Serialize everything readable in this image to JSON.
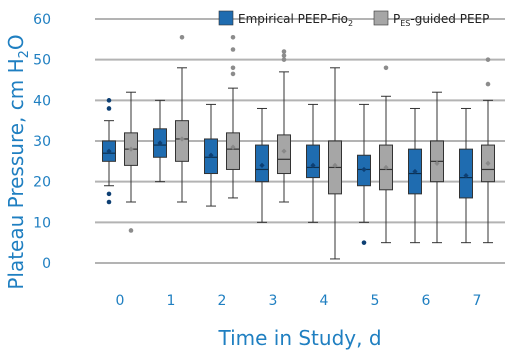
{
  "chart_data": {
    "type": "box",
    "categories": [
      "0",
      "1",
      "2",
      "3",
      "4",
      "5",
      "6",
      "7"
    ],
    "xlabel": "Time in Study, d",
    "ylabel": {
      "main": "Plateau Pressure, cm H",
      "sub": "2",
      "tail": "O"
    },
    "ylim": [
      0,
      60
    ],
    "yticks": [
      0,
      10,
      20,
      30,
      40,
      50,
      60
    ],
    "grid": true,
    "legend_position": "top-right",
    "series": [
      {
        "name": {
          "main": "Empirical PEEP-Fio",
          "sub": "2",
          "tail": ""
        },
        "color": "#1f6cb0",
        "boxes": [
          {
            "whisker_low": 19,
            "q1": 25,
            "median": 27,
            "q3": 30,
            "whisker_high": 35,
            "mean": 27.5,
            "outliers": [
              15,
              17,
              38,
              40
            ]
          },
          {
            "whisker_low": 20,
            "q1": 26,
            "median": 29,
            "q3": 33,
            "whisker_high": 40,
            "mean": 29.5,
            "outliers": []
          },
          {
            "whisker_low": 14,
            "q1": 22,
            "median": 26,
            "q3": 30.5,
            "whisker_high": 39,
            "mean": 26.5,
            "outliers": []
          },
          {
            "whisker_low": 10,
            "q1": 20,
            "median": 23,
            "q3": 29,
            "whisker_high": 38,
            "mean": 24,
            "outliers": []
          },
          {
            "whisker_low": 10,
            "q1": 21,
            "median": 23.5,
            "q3": 29,
            "whisker_high": 39,
            "mean": 24,
            "outliers": []
          },
          {
            "whisker_low": 10,
            "q1": 19,
            "median": 23,
            "q3": 26.5,
            "whisker_high": 39,
            "mean": 23,
            "outliers": [
              5
            ]
          },
          {
            "whisker_low": 5,
            "q1": 17,
            "median": 22,
            "q3": 28,
            "whisker_high": 38,
            "mean": 22.5,
            "outliers": []
          },
          {
            "whisker_low": 5,
            "q1": 16,
            "median": 21,
            "q3": 28,
            "whisker_high": 38,
            "mean": 21.5,
            "outliers": []
          }
        ]
      },
      {
        "name": {
          "main": "P",
          "sub": "ES",
          "tail": "-guided PEEP"
        },
        "color": "#a6a6a6",
        "boxes": [
          {
            "whisker_low": 15,
            "q1": 24,
            "median": 28,
            "q3": 32,
            "whisker_high": 42,
            "mean": 28,
            "outliers": [
              8
            ]
          },
          {
            "whisker_low": 15,
            "q1": 25,
            "median": 30.5,
            "q3": 35,
            "whisker_high": 48,
            "mean": 30.5,
            "outliers": [
              55.5
            ]
          },
          {
            "whisker_low": 16,
            "q1": 23,
            "median": 28,
            "q3": 32,
            "whisker_high": 43,
            "mean": 28.5,
            "outliers": [
              46.5,
              48,
              52.5,
              55.5
            ]
          },
          {
            "whisker_low": 15,
            "q1": 22,
            "median": 25.5,
            "q3": 31.5,
            "whisker_high": 47,
            "mean": 27.5,
            "outliers": [
              50,
              51,
              52
            ]
          },
          {
            "whisker_low": 1,
            "q1": 17,
            "median": 23.5,
            "q3": 30,
            "whisker_high": 48,
            "mean": 24,
            "outliers": []
          },
          {
            "whisker_low": 5,
            "q1": 18,
            "median": 23,
            "q3": 29,
            "whisker_high": 41,
            "mean": 23.5,
            "outliers": [
              48
            ]
          },
          {
            "whisker_low": 5,
            "q1": 20,
            "median": 25,
            "q3": 30,
            "whisker_high": 42,
            "mean": 24.5,
            "outliers": []
          },
          {
            "whisker_low": 5,
            "q1": 20,
            "median": 23,
            "q3": 29,
            "whisker_high": 40,
            "mean": 24.5,
            "outliers": [
              44,
              50
            ]
          }
        ]
      }
    ]
  }
}
